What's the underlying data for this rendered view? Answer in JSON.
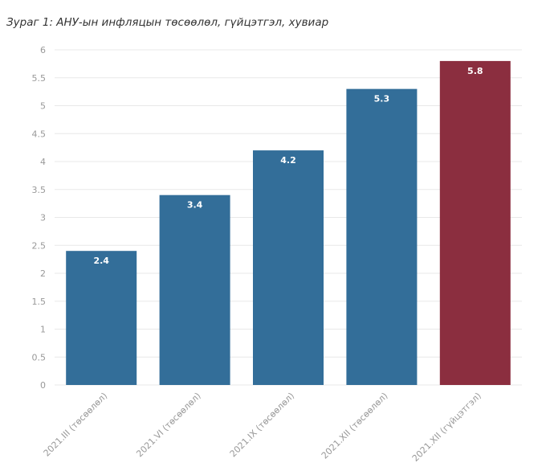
{
  "chart_data": {
    "type": "bar",
    "title": "Зураг 1: АНУ-ын инфляцын төсөөлөл, гүйцэтгэл, хувиар",
    "categories": [
      "2021.III (төсөөлөл)",
      "2021.VI (төсөөлөл)",
      "2021.IX (төсөөлөл)",
      "2021.XII (төсөөлөл)",
      "2021.XII (гүйцэтгэл)"
    ],
    "values": [
      2.4,
      3.4,
      4.2,
      5.3,
      5.8
    ],
    "bar_colors": [
      "#336e99",
      "#336e99",
      "#336e99",
      "#336e99",
      "#8b2e3f"
    ],
    "ylim": [
      0,
      6
    ],
    "yticks": [
      0,
      0.5,
      1,
      1.5,
      2,
      2.5,
      3,
      3.5,
      4,
      4.5,
      5,
      5.5,
      6
    ],
    "data_labels": true,
    "grid": true,
    "xlabel": "",
    "ylabel": ""
  },
  "colors": {
    "grid": "#e8e8e8",
    "axis_text": "#999999",
    "label_text": "#ffffff"
  }
}
